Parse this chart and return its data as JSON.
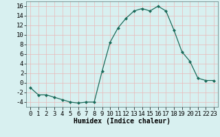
{
  "x": [
    0,
    1,
    2,
    3,
    4,
    5,
    6,
    7,
    8,
    9,
    10,
    11,
    12,
    13,
    14,
    15,
    16,
    17,
    18,
    19,
    20,
    21,
    22,
    23
  ],
  "y": [
    -1,
    -2.5,
    -2.5,
    -3,
    -3.5,
    -4,
    -4.2,
    -4,
    -4,
    2.5,
    8.5,
    11.5,
    13.5,
    15,
    15.5,
    15,
    16,
    15,
    11,
    6.5,
    4.5,
    1,
    0.5,
    0.5
  ],
  "line_color": "#1a6b5a",
  "marker": "D",
  "marker_size": 2,
  "bg_color": "#d8f0f0",
  "grid_color": "#b8d8d8",
  "xlabel": "Humidex (Indice chaleur)",
  "ylim": [
    -5,
    17
  ],
  "xlim": [
    -0.5,
    23.5
  ],
  "yticks": [
    -4,
    -2,
    0,
    2,
    4,
    6,
    8,
    10,
    12,
    14,
    16
  ],
  "xticks": [
    0,
    1,
    2,
    3,
    4,
    5,
    6,
    7,
    8,
    9,
    10,
    11,
    12,
    13,
    14,
    15,
    16,
    17,
    18,
    19,
    20,
    21,
    22,
    23
  ],
  "xlabel_fontsize": 7,
  "tick_fontsize": 6.5
}
